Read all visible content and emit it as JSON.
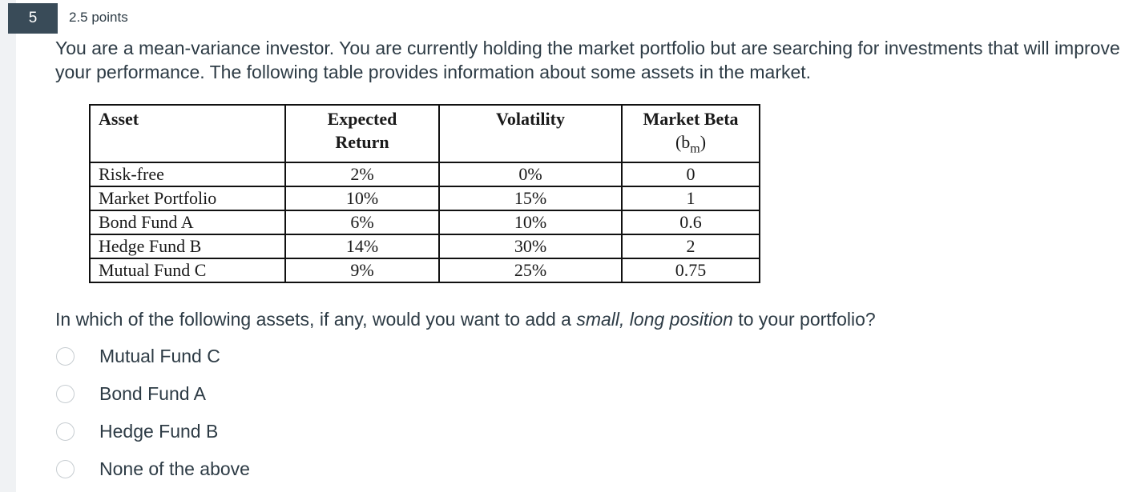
{
  "question": {
    "number": "5",
    "points": "2.5 points",
    "text": "You are a mean-variance investor. You are currently holding the market portfolio but are searching for investments that will improve your performance. The following table provides information about some assets in the market.",
    "prompt_before": "In which of the following assets, if any, would you want to add a ",
    "prompt_emphasis": "small, long position",
    "prompt_after": " to your portfolio?"
  },
  "table": {
    "headers": {
      "asset": "Asset",
      "expected_return_line1": "Expected",
      "expected_return_line2": "Return",
      "volatility": "Volatility",
      "beta_line1": "Market Beta",
      "beta_symbol_open": "(b",
      "beta_symbol_sub": "m",
      "beta_symbol_close": ")"
    },
    "rows": [
      {
        "asset": "Risk-free",
        "expected_return": "2%",
        "volatility": "0%",
        "beta": "0"
      },
      {
        "asset": "Market Portfolio",
        "expected_return": "10%",
        "volatility": "15%",
        "beta": "1"
      },
      {
        "asset": "Bond Fund A",
        "expected_return": "6%",
        "volatility": "10%",
        "beta": "0.6"
      },
      {
        "asset": "Hedge Fund B",
        "expected_return": "14%",
        "volatility": "30%",
        "beta": "2"
      },
      {
        "asset": "Mutual Fund C",
        "expected_return": "9%",
        "volatility": "25%",
        "beta": "0.75"
      }
    ]
  },
  "options": [
    {
      "label": "Mutual Fund C",
      "selected": false
    },
    {
      "label": "Bond Fund A",
      "selected": false
    },
    {
      "label": "Hedge Fund B",
      "selected": false
    },
    {
      "label": "None of the above",
      "selected": false
    }
  ],
  "colors": {
    "question_number_bg": "#394b58",
    "text": "#2d3b45",
    "radio_border": "#c7cdd1",
    "rail": "#f0f2f4"
  }
}
